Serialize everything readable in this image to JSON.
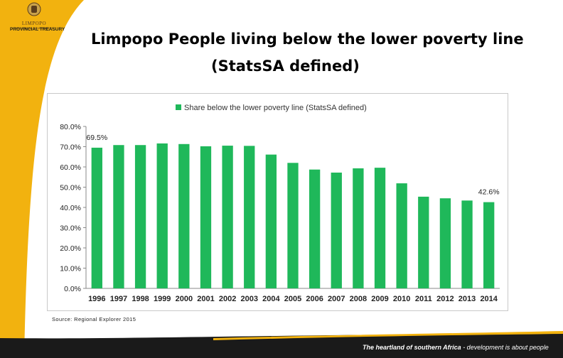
{
  "header": {
    "logo_name": "LIMPOPO",
    "logo_sub": "PROVINCIAL GOVERNMENT",
    "department": "PROVINCIAL TREASURY",
    "title_line1": "Limpopo People living below the lower poverty line",
    "title_line2": "(StatsSA defined)"
  },
  "source_note": "Source: Regional Explorer 2015",
  "footer": {
    "tagline_bold": "The heartland of southern Africa",
    "tagline_rest": " - development is about people"
  },
  "colors": {
    "bar": "#1fb85a",
    "gold": "#f2b20f",
    "footer_band": "#1a1a1a"
  },
  "chart_data": {
    "type": "bar",
    "title": "",
    "xlabel": "",
    "ylabel": "",
    "ylim": [
      0,
      80
    ],
    "y_ticks": [
      "0.0%",
      "10.0%",
      "20.0%",
      "30.0%",
      "40.0%",
      "50.0%",
      "60.0%",
      "70.0%",
      "80.0%"
    ],
    "grid": false,
    "legend_position": "top",
    "categories": [
      "1996",
      "1997",
      "1998",
      "1999",
      "2000",
      "2001",
      "2002",
      "2003",
      "2004",
      "2005",
      "2006",
      "2007",
      "2008",
      "2009",
      "2010",
      "2011",
      "2012",
      "2013",
      "2014"
    ],
    "series": [
      {
        "name": "Share below the lower poverty line (StatsSA defined)",
        "values": [
          69.5,
          70.8,
          70.8,
          71.6,
          71.3,
          70.2,
          70.5,
          70.4,
          66.1,
          62.0,
          58.7,
          57.2,
          59.3,
          59.6,
          51.9,
          45.3,
          44.5,
          43.4,
          42.6
        ]
      }
    ],
    "data_labels": [
      {
        "category": "1996",
        "text": "69.5%"
      },
      {
        "category": "2014",
        "text": "42.6%"
      }
    ]
  }
}
